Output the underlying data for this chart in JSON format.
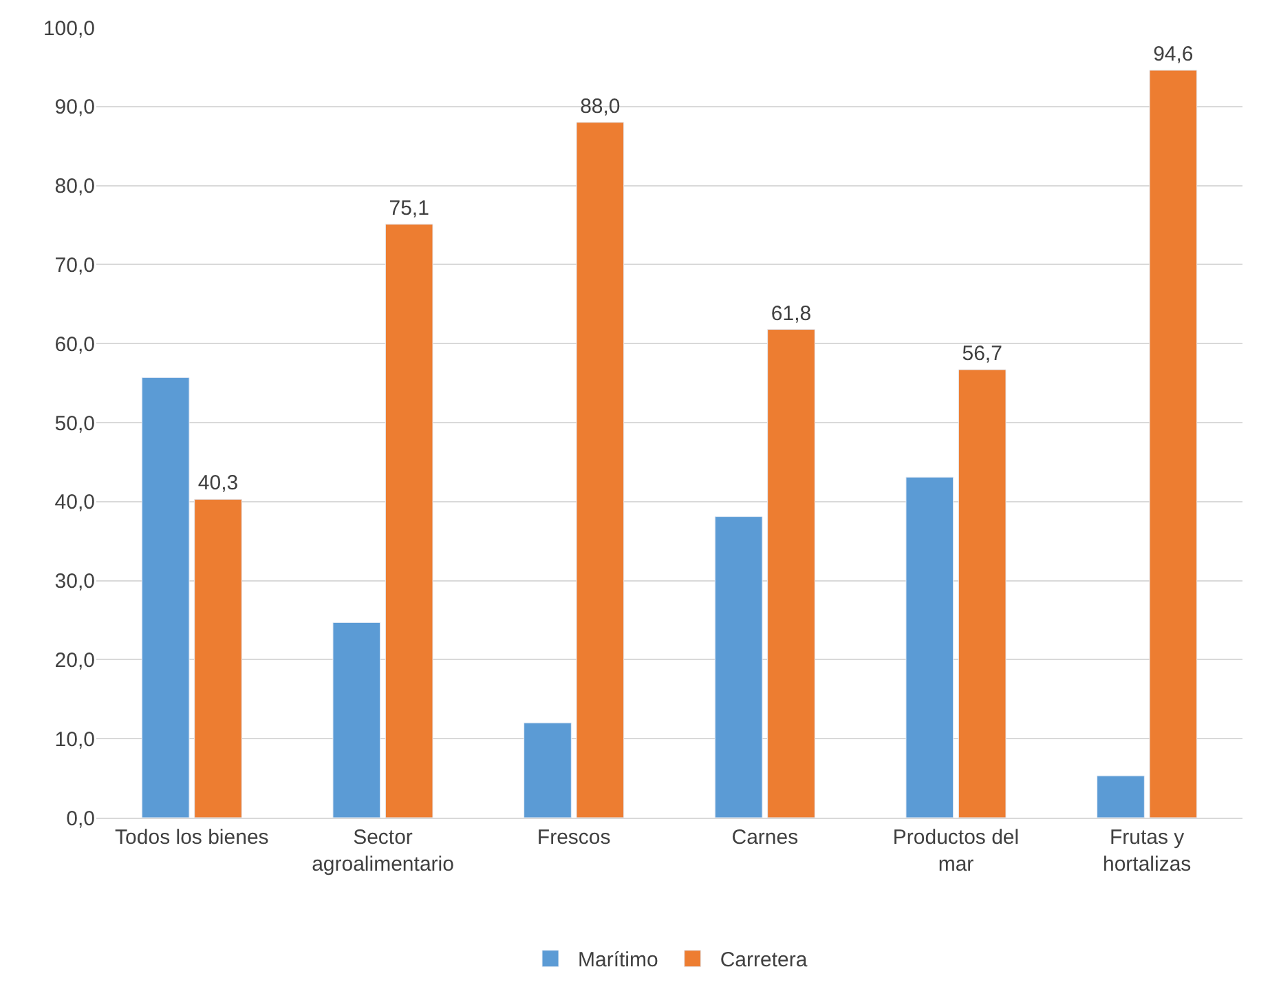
{
  "chart_data": {
    "type": "bar",
    "categories": [
      "Todos los bienes",
      "Sector agroalimentario",
      "Frescos",
      "Carnes",
      "Productos del mar",
      "Frutas y hortalizas"
    ],
    "series": [
      {
        "name": "Marítimo",
        "color": "#5b9bd5",
        "values": [
          55.7,
          24.7,
          12.0,
          38.1,
          43.1,
          5.3
        ]
      },
      {
        "name": "Carretera",
        "color": "#ed7d31",
        "values": [
          40.3,
          75.1,
          88.0,
          61.8,
          56.7,
          94.6
        ],
        "value_labels": [
          "40,3",
          "75,1",
          "88,0",
          "61,8",
          "56,7",
          "94,6"
        ]
      }
    ],
    "ylim": [
      0,
      100
    ],
    "yticks": [
      {
        "value": 0,
        "label": "0,0"
      },
      {
        "value": 10,
        "label": "10,0"
      },
      {
        "value": 20,
        "label": "20,0"
      },
      {
        "value": 30,
        "label": "30,0"
      },
      {
        "value": 40,
        "label": "40,0"
      },
      {
        "value": 50,
        "label": "50,0"
      },
      {
        "value": 60,
        "label": "60,0"
      },
      {
        "value": 70,
        "label": "70,0"
      },
      {
        "value": 80,
        "label": "80,0"
      },
      {
        "value": 90,
        "label": "90,0"
      },
      {
        "value": 100,
        "label": "100,0"
      }
    ],
    "grid": "y",
    "legend": "bottom"
  }
}
